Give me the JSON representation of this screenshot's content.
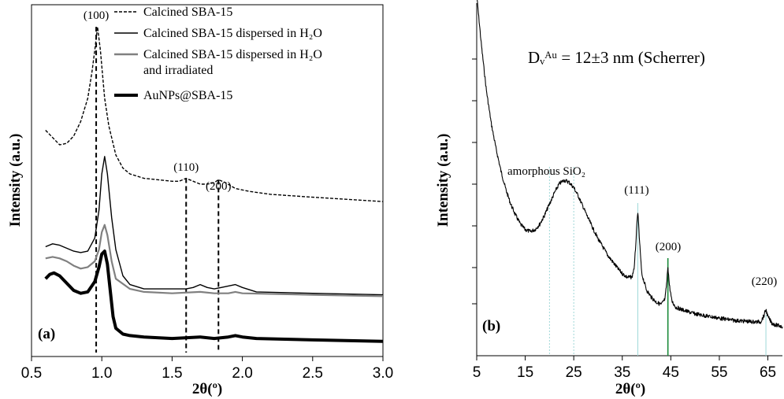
{
  "chart_data": [
    {
      "type": "line",
      "panel_label": "(a)",
      "xlabel": "2θ(º)",
      "ylabel": "Intensity (a.u.)",
      "xlim": [
        0.5,
        3.0
      ],
      "xticks": [
        "0.5",
        "1.0",
        "1.5",
        "2.0",
        "2.5",
        "3.0"
      ],
      "xtick_values": [
        0.5,
        1.0,
        1.5,
        2.0,
        2.5,
        3.0
      ],
      "grid": false,
      "legend_position": "top-right",
      "peak_labels": [
        {
          "text": "(100)",
          "x": 0.96
        },
        {
          "text": "(110)",
          "x": 1.6
        },
        {
          "text": "(200)",
          "x": 1.83
        }
      ],
      "reference_lines": [
        0.96,
        1.6,
        1.83
      ],
      "series": [
        {
          "name": "Calcined SBA-15",
          "style": "dashed",
          "color": "#000000",
          "x": [
            0.6,
            0.65,
            0.7,
            0.75,
            0.8,
            0.85,
            0.9,
            0.93,
            0.95,
            0.97,
            0.99,
            1.02,
            1.05,
            1.1,
            1.15,
            1.2,
            1.3,
            1.4,
            1.5,
            1.55,
            1.6,
            1.65,
            1.7,
            1.75,
            1.8,
            1.83,
            1.88,
            1.95,
            2.05,
            2.2,
            2.5,
            3.0
          ],
          "y": [
            1.5,
            1.45,
            1.4,
            1.41,
            1.46,
            1.56,
            1.72,
            1.9,
            2.05,
            2.21,
            2.05,
            1.72,
            1.53,
            1.33,
            1.24,
            1.2,
            1.17,
            1.16,
            1.15,
            1.15,
            1.17,
            1.15,
            1.13,
            1.13,
            1.14,
            1.16,
            1.14,
            1.1,
            1.08,
            1.06,
            1.04,
            1.01
          ]
        },
        {
          "name": "Calcined SBA-15 dispersed in H₂O",
          "style": "solid",
          "color": "#000000",
          "x": [
            0.6,
            0.65,
            0.7,
            0.75,
            0.8,
            0.85,
            0.9,
            0.95,
            0.98,
            1.0,
            1.02,
            1.04,
            1.07,
            1.1,
            1.15,
            1.2,
            1.3,
            1.4,
            1.5,
            1.6,
            1.65,
            1.7,
            1.75,
            1.8,
            1.85,
            1.9,
            1.95,
            2.0,
            2.1,
            2.5,
            3.0
          ],
          "y": [
            0.7,
            0.72,
            0.71,
            0.69,
            0.67,
            0.66,
            0.67,
            0.76,
            0.95,
            1.2,
            1.32,
            1.2,
            0.9,
            0.68,
            0.5,
            0.44,
            0.41,
            0.41,
            0.41,
            0.41,
            0.42,
            0.44,
            0.42,
            0.41,
            0.42,
            0.43,
            0.44,
            0.42,
            0.39,
            0.38,
            0.37
          ]
        },
        {
          "name": "Calcined SBA-15 dispersed in H₂O and irradiated",
          "style": "solid",
          "color": "#808080",
          "x": [
            0.6,
            0.65,
            0.7,
            0.75,
            0.8,
            0.85,
            0.9,
            0.95,
            0.98,
            1.0,
            1.02,
            1.04,
            1.07,
            1.1,
            1.2,
            1.3,
            1.5,
            1.7,
            1.8,
            1.9,
            1.95,
            2.0,
            2.5,
            3.0
          ],
          "y": [
            0.62,
            0.63,
            0.62,
            0.6,
            0.57,
            0.55,
            0.56,
            0.6,
            0.68,
            0.8,
            0.85,
            0.78,
            0.6,
            0.48,
            0.41,
            0.39,
            0.38,
            0.39,
            0.38,
            0.38,
            0.39,
            0.38,
            0.37,
            0.36
          ]
        },
        {
          "name": "AuNPs@SBA-15",
          "style": "bold",
          "color": "#000000",
          "x": [
            0.6,
            0.63,
            0.66,
            0.7,
            0.75,
            0.8,
            0.85,
            0.9,
            0.95,
            0.98,
            1.0,
            1.02,
            1.04,
            1.06,
            1.08,
            1.1,
            1.15,
            1.2,
            1.3,
            1.5,
            1.7,
            1.8,
            1.9,
            1.95,
            2.0,
            2.1,
            2.5,
            3.0
          ],
          "y": [
            0.48,
            0.51,
            0.52,
            0.5,
            0.45,
            0.4,
            0.38,
            0.39,
            0.46,
            0.56,
            0.65,
            0.67,
            0.58,
            0.4,
            0.22,
            0.14,
            0.1,
            0.09,
            0.08,
            0.07,
            0.08,
            0.07,
            0.08,
            0.09,
            0.08,
            0.07,
            0.06,
            0.05
          ]
        }
      ]
    },
    {
      "type": "line",
      "panel_label": "(b)",
      "title": "Dᵥᴬᵘ = 12±3 nm (Scherrer)",
      "xlabel": "2θ(º)",
      "ylabel": "Intensity (a.u.)",
      "xlim": [
        5,
        68
      ],
      "xticks": [
        "5",
        "15",
        "25",
        "35",
        "45",
        "55",
        "65"
      ],
      "xtick_values": [
        5,
        15,
        25,
        35,
        45,
        55,
        65
      ],
      "grid": false,
      "annotations": [
        {
          "text": "amorphous SiO₂",
          "x": 22.5
        },
        {
          "text": "(111)",
          "x": 38.2
        },
        {
          "text": "(200)",
          "x": 44.4
        },
        {
          "text": "(220)",
          "x": 64.6
        }
      ],
      "reference_lines": [
        {
          "x": 20,
          "color": "#9fd8d8"
        },
        {
          "x": 25,
          "color": "#9fd8d8"
        },
        {
          "x": 38.2,
          "color": "#9fd8d8"
        },
        {
          "x": 44.4,
          "color": "#1a8a3a"
        },
        {
          "x": 64.6,
          "color": "#9fd8d8"
        }
      ],
      "series": [
        {
          "name": "",
          "color": "#000000",
          "x": [
            5,
            5.5,
            6,
            6.5,
            7,
            8,
            9,
            10,
            11,
            12,
            13,
            14,
            15,
            16,
            17,
            18,
            19,
            20,
            21,
            22,
            23,
            24,
            25,
            26,
            27,
            28,
            30,
            32,
            34,
            35,
            36,
            37,
            37.5,
            38,
            38.2,
            38.5,
            39,
            40,
            41,
            42,
            43,
            43.8,
            44.2,
            44.4,
            44.7,
            45.2,
            46,
            48,
            50,
            52,
            55,
            58,
            60,
            62,
            63.5,
            64.2,
            64.6,
            65,
            65.8,
            66.5,
            68
          ],
          "y": [
            10.0,
            9.3,
            8.6,
            8.0,
            7.4,
            6.5,
            5.8,
            5.2,
            4.7,
            4.3,
            4.0,
            3.75,
            3.6,
            3.55,
            3.6,
            3.75,
            4.0,
            4.3,
            4.6,
            4.85,
            4.95,
            4.9,
            4.75,
            4.5,
            4.2,
            3.9,
            3.35,
            2.9,
            2.55,
            2.4,
            2.3,
            2.3,
            2.6,
            3.7,
            4.1,
            3.4,
            2.4,
            1.95,
            1.75,
            1.62,
            1.55,
            1.7,
            2.2,
            2.6,
            2.1,
            1.65,
            1.48,
            1.38,
            1.3,
            1.25,
            1.18,
            1.12,
            1.1,
            1.08,
            1.08,
            1.25,
            1.42,
            1.22,
            1.05,
            1.0,
            0.95
          ]
        }
      ]
    }
  ]
}
